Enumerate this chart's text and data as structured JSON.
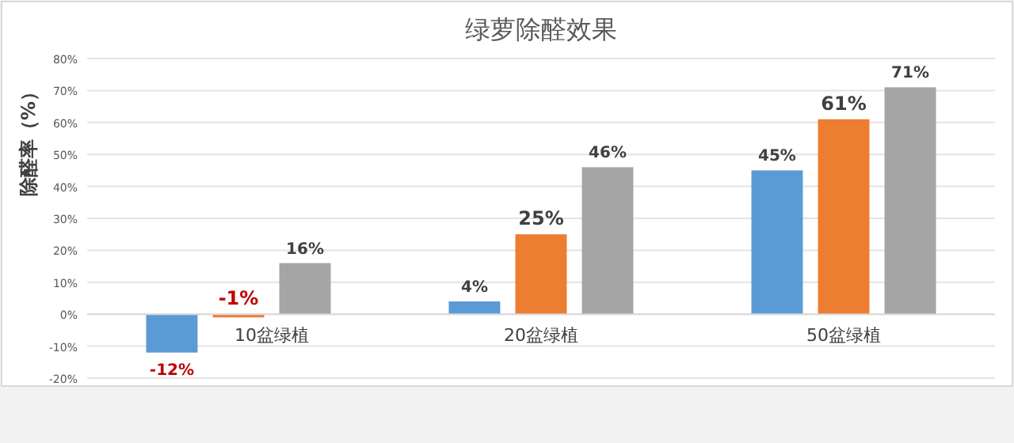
{
  "chart_data": {
    "type": "bar",
    "title": "绿萝除醛效果",
    "ylabel": "除醛率（%）",
    "categories": [
      "10盆绿植",
      "20盆绿植",
      "50盆绿植"
    ],
    "series": [
      {
        "color": "#5b9bd5",
        "values": [
          -12,
          4,
          45
        ],
        "value_labels": [
          "-12%",
          "4%",
          "45%"
        ]
      },
      {
        "color": "#ed7d31",
        "values": [
          -1,
          25,
          61
        ],
        "value_labels": [
          "-1%",
          "25%",
          "61%"
        ]
      },
      {
        "color": "#a5a5a5",
        "values": [
          16,
          46,
          71
        ],
        "value_labels": [
          "16%",
          "46%",
          "71%"
        ]
      }
    ],
    "ylim": [
      -20,
      80
    ],
    "yticks": [
      {
        "value": -20,
        "label": "-20%"
      },
      {
        "value": -10,
        "label": "-10%"
      },
      {
        "value": 0,
        "label": "0%"
      },
      {
        "value": 10,
        "label": "10%"
      },
      {
        "value": 20,
        "label": "20%"
      },
      {
        "value": 30,
        "label": "30%"
      },
      {
        "value": 40,
        "label": "40%"
      },
      {
        "value": 50,
        "label": "50%"
      },
      {
        "value": 60,
        "label": "60%"
      },
      {
        "value": 70,
        "label": "70%"
      },
      {
        "value": 80,
        "label": "80%"
      }
    ],
    "grid": "y"
  }
}
